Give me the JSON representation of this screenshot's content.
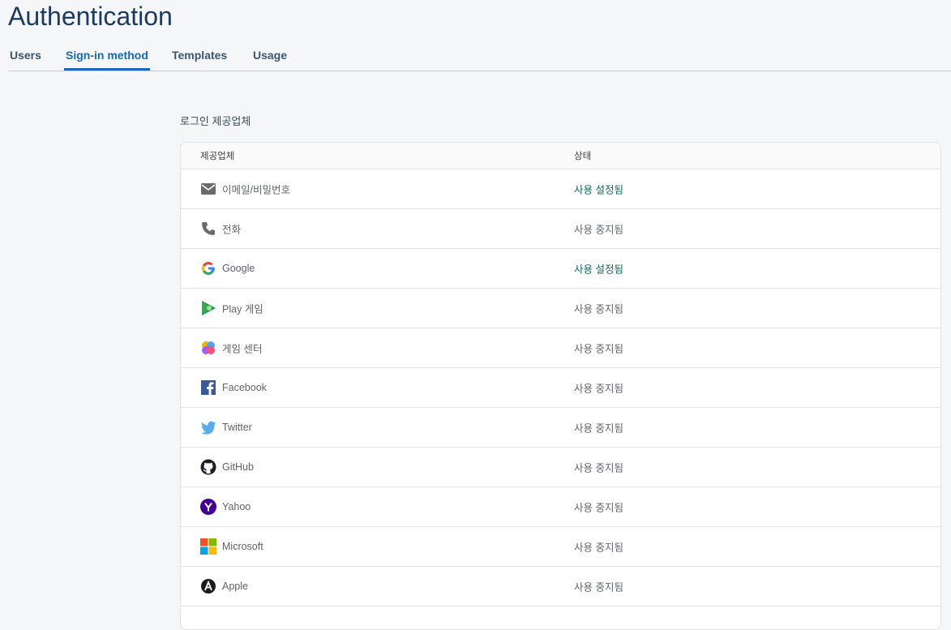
{
  "header": {
    "title": "Authentication"
  },
  "tabs": [
    "Users",
    "Sign-in method",
    "Templates",
    "Usage"
  ],
  "section": {
    "title": "로그인 제공업체"
  },
  "table": {
    "columns": [
      "제공업체",
      "상태"
    ],
    "rows": [
      [
        "이메일/비밀번호",
        "사용 설정됨"
      ],
      [
        "전화",
        "사용 중지됨"
      ],
      [
        "Google",
        "사용 설정됨"
      ],
      [
        "Play 게임",
        "사용 중지됨"
      ],
      [
        "게임 센터",
        "사용 중지됨"
      ],
      [
        "Facebook",
        "사용 중지됨"
      ],
      [
        "Twitter",
        "사용 중지됨"
      ],
      [
        "GitHub",
        "사용 중지됨"
      ],
      [
        "Yahoo",
        "사용 중지됨"
      ],
      [
        "Microsoft",
        "사용 중지됨"
      ],
      [
        "Apple",
        "사용 중지됨"
      ]
    ]
  }
}
